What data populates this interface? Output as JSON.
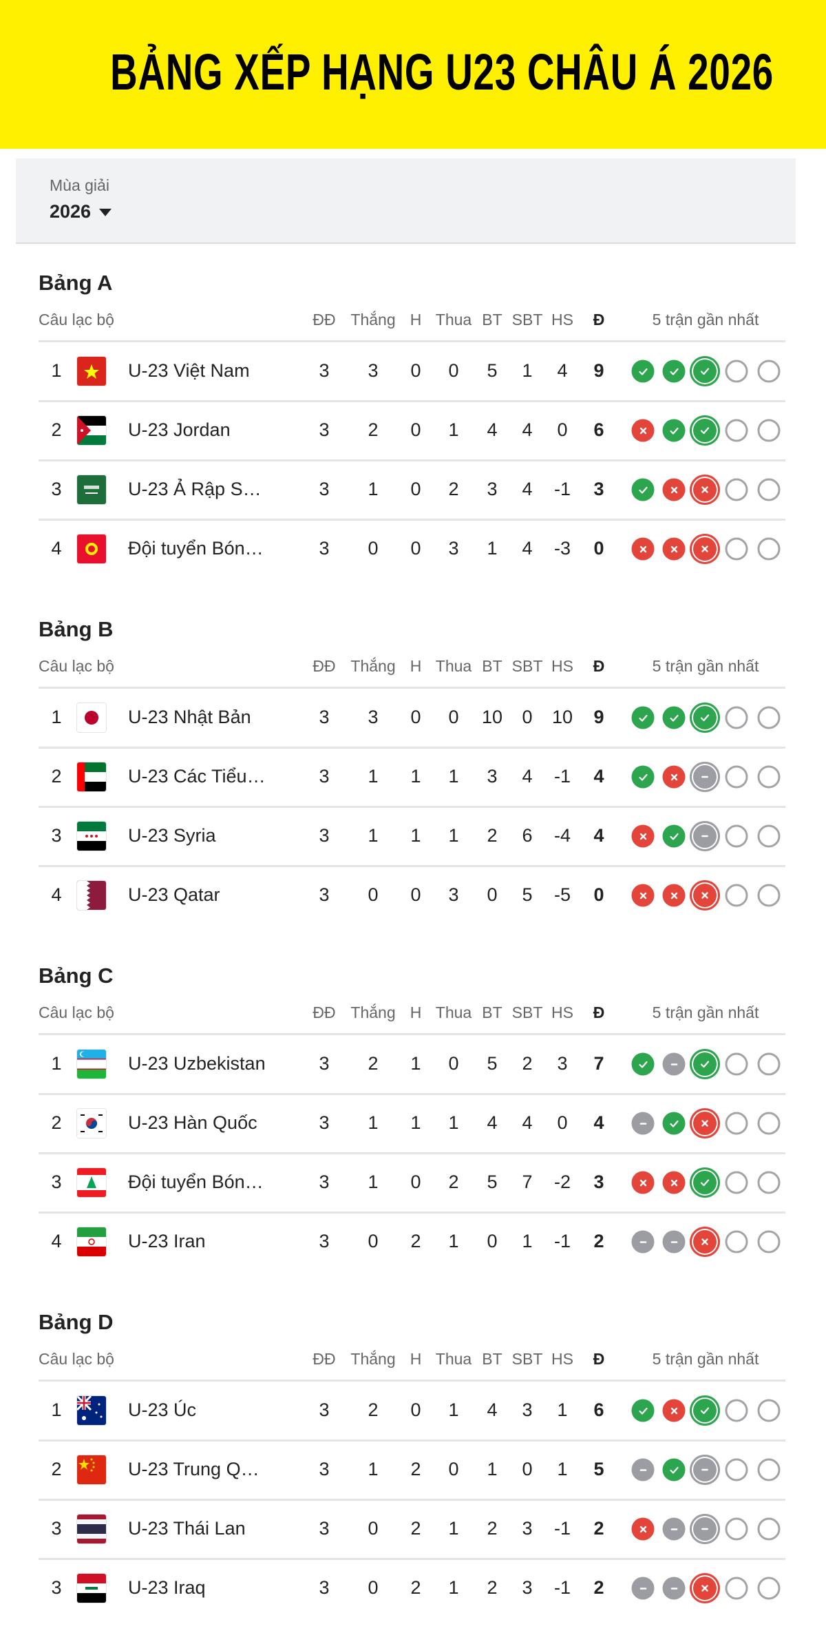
{
  "title": "BẢNG XẾP HẠNG U23 CHÂU Á 2026",
  "season": {
    "label": "Mùa giải",
    "value": "2026"
  },
  "colors": {
    "banner": "#fff000",
    "win": "#2da44e",
    "loss": "#e4453a",
    "draw": "#9c9ca3"
  },
  "columns": [
    "Câu lạc bộ",
    "ĐĐ",
    "Thắng",
    "H",
    "Thua",
    "BT",
    "SBT",
    "HS",
    "Đ",
    "5 trận gần nhất"
  ],
  "groups": [
    {
      "name": "Bảng A",
      "rows": [
        {
          "rank": "1",
          "flag": "vn",
          "team": "U-23 Việt Nam",
          "p": "3",
          "w": "3",
          "d": "0",
          "l": "0",
          "gf": "5",
          "ga": "1",
          "gd": "4",
          "pts": "9",
          "form": [
            "W",
            "W",
            "W",
            null,
            null
          ]
        },
        {
          "rank": "2",
          "flag": "jo",
          "team": "U-23 Jordan",
          "p": "3",
          "w": "2",
          "d": "0",
          "l": "1",
          "gf": "4",
          "ga": "4",
          "gd": "0",
          "pts": "6",
          "form": [
            "L",
            "W",
            "W",
            null,
            null
          ]
        },
        {
          "rank": "3",
          "flag": "sa",
          "team": "U-23 Ả Rập S…",
          "p": "3",
          "w": "1",
          "d": "0",
          "l": "2",
          "gf": "3",
          "ga": "4",
          "gd": "-1",
          "pts": "3",
          "form": [
            "W",
            "L",
            "L",
            null,
            null
          ]
        },
        {
          "rank": "4",
          "flag": "kg",
          "team": "Đội tuyển Bón…",
          "p": "3",
          "w": "0",
          "d": "0",
          "l": "3",
          "gf": "1",
          "ga": "4",
          "gd": "-3",
          "pts": "0",
          "form": [
            "L",
            "L",
            "L",
            null,
            null
          ]
        }
      ]
    },
    {
      "name": "Bảng B",
      "rows": [
        {
          "rank": "1",
          "flag": "jp",
          "team": "U-23 Nhật Bản",
          "p": "3",
          "w": "3",
          "d": "0",
          "l": "0",
          "gf": "10",
          "ga": "0",
          "gd": "10",
          "pts": "9",
          "form": [
            "W",
            "W",
            "W",
            null,
            null
          ]
        },
        {
          "rank": "2",
          "flag": "ae",
          "team": "U-23 Các Tiểu…",
          "p": "3",
          "w": "1",
          "d": "1",
          "l": "1",
          "gf": "3",
          "ga": "4",
          "gd": "-1",
          "pts": "4",
          "form": [
            "W",
            "L",
            "D",
            null,
            null
          ]
        },
        {
          "rank": "3",
          "flag": "sy",
          "team": "U-23 Syria",
          "p": "3",
          "w": "1",
          "d": "1",
          "l": "1",
          "gf": "2",
          "ga": "6",
          "gd": "-4",
          "pts": "4",
          "form": [
            "L",
            "W",
            "D",
            null,
            null
          ]
        },
        {
          "rank": "4",
          "flag": "qa",
          "team": "U-23 Qatar",
          "p": "3",
          "w": "0",
          "d": "0",
          "l": "3",
          "gf": "0",
          "ga": "5",
          "gd": "-5",
          "pts": "0",
          "form": [
            "L",
            "L",
            "L",
            null,
            null
          ]
        }
      ]
    },
    {
      "name": "Bảng C",
      "rows": [
        {
          "rank": "1",
          "flag": "uz",
          "team": "U-23 Uzbekistan",
          "p": "3",
          "w": "2",
          "d": "1",
          "l": "0",
          "gf": "5",
          "ga": "2",
          "gd": "3",
          "pts": "7",
          "form": [
            "W",
            "D",
            "W",
            null,
            null
          ]
        },
        {
          "rank": "2",
          "flag": "kr",
          "team": "U-23 Hàn Quốc",
          "p": "3",
          "w": "1",
          "d": "1",
          "l": "1",
          "gf": "4",
          "ga": "4",
          "gd": "0",
          "pts": "4",
          "form": [
            "D",
            "W",
            "L",
            null,
            null
          ]
        },
        {
          "rank": "3",
          "flag": "lb",
          "team": "Đội tuyển Bón…",
          "p": "3",
          "w": "1",
          "d": "0",
          "l": "2",
          "gf": "5",
          "ga": "7",
          "gd": "-2",
          "pts": "3",
          "form": [
            "L",
            "L",
            "W",
            null,
            null
          ]
        },
        {
          "rank": "4",
          "flag": "ir",
          "team": "U-23 Iran",
          "p": "3",
          "w": "0",
          "d": "2",
          "l": "1",
          "gf": "0",
          "ga": "1",
          "gd": "-1",
          "pts": "2",
          "form": [
            "D",
            "D",
            "L",
            null,
            null
          ]
        }
      ]
    },
    {
      "name": "Bảng D",
      "rows": [
        {
          "rank": "1",
          "flag": "au",
          "team": "U-23 Úc",
          "p": "3",
          "w": "2",
          "d": "0",
          "l": "1",
          "gf": "4",
          "ga": "3",
          "gd": "1",
          "pts": "6",
          "form": [
            "W",
            "L",
            "W",
            null,
            null
          ]
        },
        {
          "rank": "2",
          "flag": "cn",
          "team": "U-23 Trung Q…",
          "p": "3",
          "w": "1",
          "d": "2",
          "l": "0",
          "gf": "1",
          "ga": "0",
          "gd": "1",
          "pts": "5",
          "form": [
            "D",
            "W",
            "D",
            null,
            null
          ]
        },
        {
          "rank": "3",
          "flag": "th",
          "team": "U-23 Thái Lan",
          "p": "3",
          "w": "0",
          "d": "2",
          "l": "1",
          "gf": "2",
          "ga": "3",
          "gd": "-1",
          "pts": "2",
          "form": [
            "L",
            "D",
            "D",
            null,
            null
          ]
        },
        {
          "rank": "3",
          "flag": "iq",
          "team": "U-23 Iraq",
          "p": "3",
          "w": "0",
          "d": "2",
          "l": "1",
          "gf": "2",
          "ga": "3",
          "gd": "-1",
          "pts": "2",
          "form": [
            "D",
            "D",
            "L",
            null,
            null
          ]
        }
      ]
    }
  ]
}
